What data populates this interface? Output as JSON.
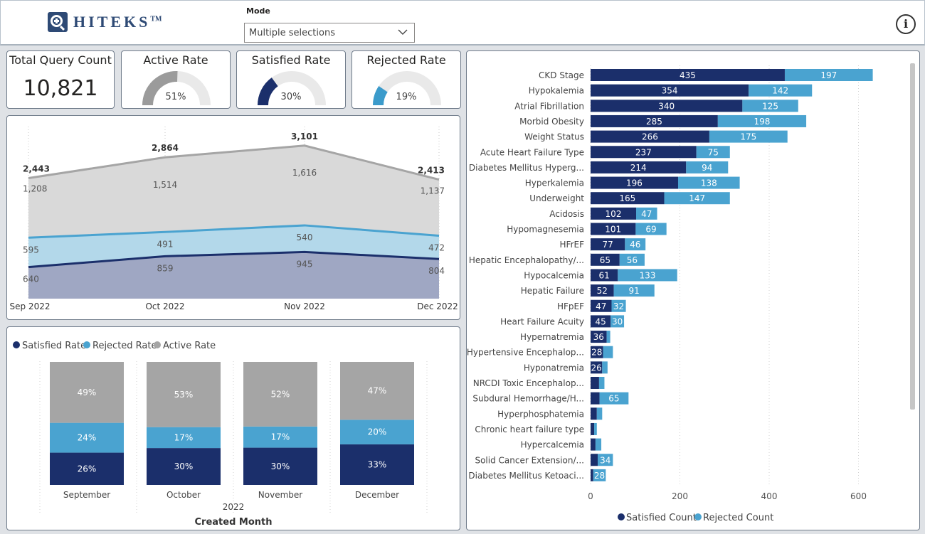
{
  "header": {
    "logo_text": "HITEKS",
    "logo_tm": "TM",
    "mode_label": "Mode",
    "mode_value": "Multiple selections",
    "info_label": "i"
  },
  "kpis": [
    {
      "title": "Total Query Count",
      "value": "10,821"
    },
    {
      "title": "Active Rate",
      "value": "51%",
      "fraction": 0.51,
      "color": "#9b9b9b"
    },
    {
      "title": "Satisfied Rate",
      "value": "30%",
      "fraction": 0.3,
      "color": "#1b2f6b"
    },
    {
      "title": "Rejected Rate",
      "value": "19%",
      "fraction": 0.19,
      "color": "#3b9bcb"
    }
  ],
  "colors": {
    "satisfied": "#1b2f6b",
    "rejected": "#4aa3d0",
    "active": "#a5a5a5"
  },
  "chart_data": [
    {
      "type": "area",
      "categories": [
        "Sep 2022",
        "Oct 2022",
        "Nov 2022",
        "Dec 2022"
      ],
      "totals": [
        "2,443",
        "2,864",
        "3,101",
        "2,413"
      ],
      "series": [
        {
          "values": [
            640,
            859,
            945,
            804
          ],
          "labels": [
            "640",
            "859",
            "945",
            "804"
          ],
          "color": "#1b2f6b"
        },
        {
          "values": [
            595,
            491,
            540,
            472
          ],
          "labels": [
            "595",
            "491",
            "540",
            "472"
          ],
          "color": "#4aa3d0"
        },
        {
          "values": [
            1208,
            1514,
            1616,
            1137
          ],
          "labels": [
            "1,208",
            "1,514",
            "1,616",
            "1,137"
          ],
          "color": "#a5a5a5"
        }
      ]
    },
    {
      "type": "bar",
      "stacked": "100%",
      "legend": [
        "Satisfied Rate",
        "Rejected Rate",
        "Active Rate"
      ],
      "categories": [
        "September",
        "October",
        "November",
        "December"
      ],
      "year_label": "2022",
      "xlabel": "Created Month",
      "series": [
        {
          "name": "Satisfied Rate",
          "values": [
            26,
            30,
            30,
            33
          ]
        },
        {
          "name": "Rejected Rate",
          "values": [
            24,
            17,
            17,
            20
          ]
        },
        {
          "name": "Active Rate",
          "values": [
            49,
            53,
            52,
            47
          ]
        }
      ]
    },
    {
      "type": "bar",
      "orientation": "horizontal",
      "stacked": true,
      "legend": [
        "Satisfied Count",
        "Rejected Count"
      ],
      "categories": [
        "CKD Stage",
        "Hypokalemia",
        "Atrial Fibrillation",
        "Morbid Obesity",
        "Weight Status",
        "Acute Heart Failure Type",
        "Diabetes Mellitus Hyperg...",
        "Hyperkalemia",
        "Underweight",
        "Acidosis",
        "Hypomagnesemia",
        "HFrEF",
        "Hepatic Encephalopathy/...",
        "Hypocalcemia",
        "Hepatic Failure",
        "HFpEF",
        "Heart Failure Acuity",
        "Hypernatremia",
        "Hypertensive Encephalop...",
        "Hyponatremia",
        "NRCDI Toxic Encephalop...",
        "Subdural Hemorrhage/H...",
        "Hyperphosphatemia",
        "Chronic heart failure type",
        "Hypercalcemia",
        "Solid Cancer Extension/...",
        "Diabetes Mellitus Ketoaci..."
      ],
      "series": [
        {
          "name": "Satisfied Count",
          "values": [
            435,
            354,
            340,
            285,
            266,
            237,
            214,
            196,
            165,
            102,
            101,
            77,
            65,
            61,
            52,
            47,
            45,
            36,
            28,
            26,
            19,
            20,
            14,
            8,
            11,
            16,
            6
          ]
        },
        {
          "name": "Rejected Count",
          "values": [
            197,
            142,
            125,
            198,
            175,
            75,
            94,
            138,
            147,
            47,
            69,
            46,
            56,
            133,
            91,
            32,
            30,
            8,
            22,
            12,
            12,
            65,
            12,
            6,
            13,
            34,
            28
          ]
        }
      ],
      "xticks": [
        0,
        200,
        400,
        600
      ],
      "xlim": [
        0,
        680
      ]
    }
  ]
}
